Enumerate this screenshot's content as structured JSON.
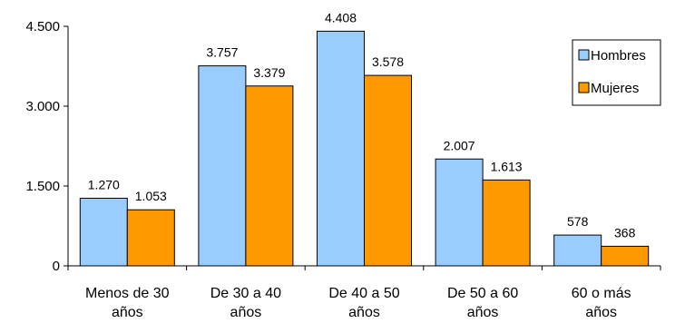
{
  "chart_data": {
    "type": "bar",
    "categories": [
      "Menos de 30 años",
      "De 30 a 40 años",
      "De 40 a 50 años",
      "De 50 a 60 años",
      "60 o más años"
    ],
    "category_lines": [
      [
        "Menos de 30",
        "años"
      ],
      [
        "De 30 a 40",
        "años"
      ],
      [
        "De 40 a 50",
        "años"
      ],
      [
        "De 50 a 60",
        "años"
      ],
      [
        "60 o más",
        "años"
      ]
    ],
    "series": [
      {
        "name": "Hombres",
        "values": [
          1270,
          3757,
          4408,
          2007,
          578
        ],
        "labels": [
          "1.270",
          "3.757",
          "4.408",
          "2.007",
          "578"
        ],
        "color": "#99CCFF"
      },
      {
        "name": "Mujeres",
        "values": [
          1053,
          3379,
          3578,
          1613,
          368
        ],
        "labels": [
          "1.053",
          "3.379",
          "3.578",
          "1.613",
          "368"
        ],
        "color": "#FF9900"
      }
    ],
    "yticks": [
      0,
      1500,
      3000,
      4500
    ],
    "ytick_labels": [
      "0",
      "1.500",
      "3.000",
      "4.500"
    ],
    "ylim": [
      0,
      4500
    ],
    "legend_position": "right",
    "grid": false
  }
}
